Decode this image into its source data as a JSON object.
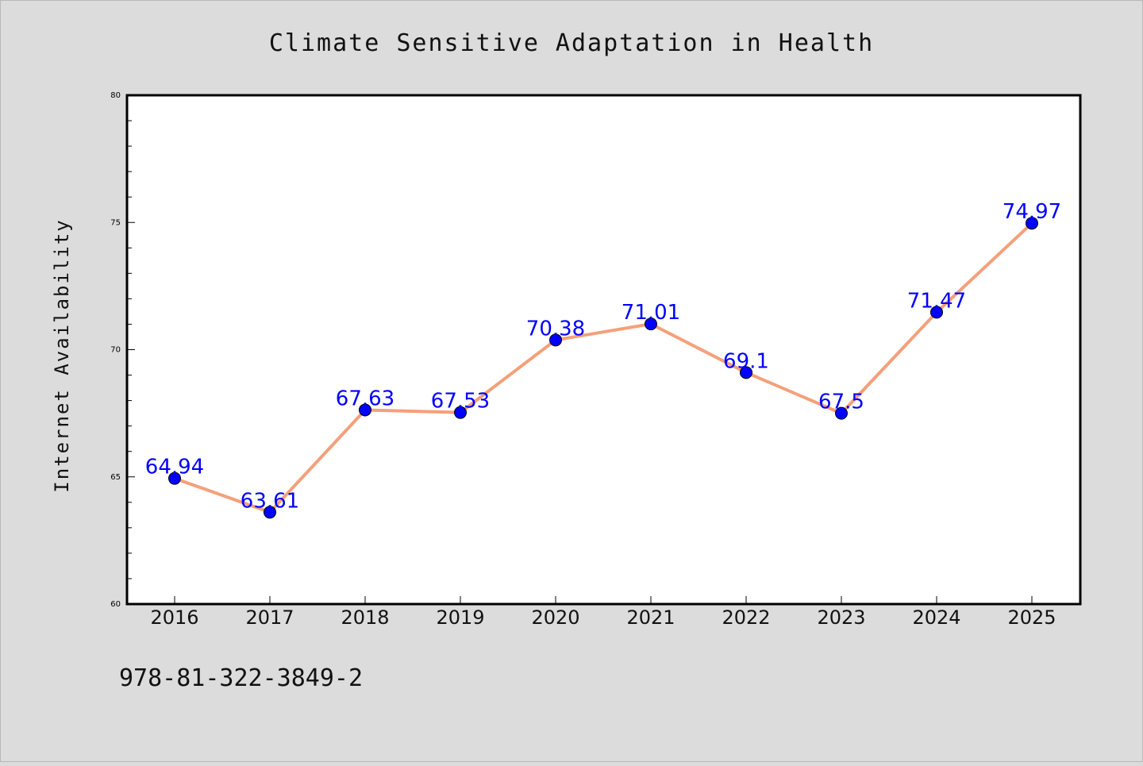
{
  "chart_data": {
    "type": "line",
    "title": "Climate Sensitive Adaptation in Health",
    "xlabel": "",
    "ylabel": "Internet Availability",
    "categories": [
      "2016",
      "2017",
      "2018",
      "2019",
      "2020",
      "2021",
      "2022",
      "2023",
      "2024",
      "2025"
    ],
    "series": [
      {
        "values": [
          64.94,
          63.61,
          67.63,
          67.53,
          70.38,
          71.01,
          69.1,
          67.5,
          71.47,
          74.97
        ],
        "data_labels": [
          "64.94",
          "63.61",
          "67.63",
          "67.53",
          "70.38",
          "71.01",
          "69.1",
          "67.5",
          "71.47",
          "74.97"
        ],
        "line_color": "#f4a07a",
        "marker_color": "#0000ff"
      }
    ],
    "ylim": [
      60,
      80
    ],
    "yticks": [
      60,
      65,
      70,
      75,
      80
    ],
    "grid": false,
    "legend": "none"
  },
  "footer_text": "978-81-322-3849-2",
  "colors": {
    "background": "#dcdcdc",
    "plot_background": "#ffffff",
    "label_color": "#0000ff"
  }
}
